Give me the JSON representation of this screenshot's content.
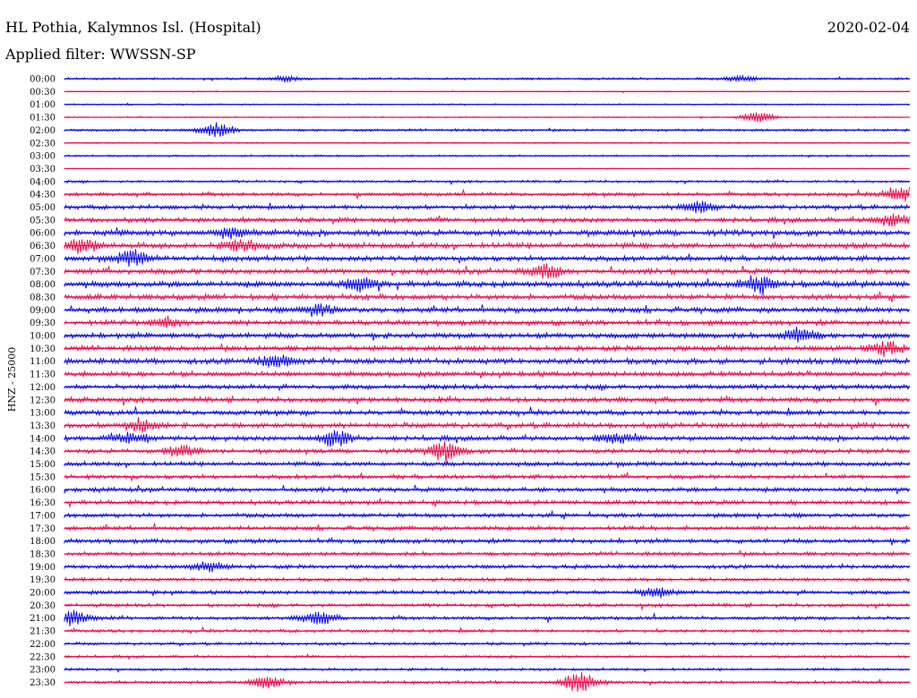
{
  "header": {
    "station": "HL Pothia, Kalymnos Isl. (Hospital)",
    "date": "2020-02-04",
    "filter": "Applied filter: WWSSN-SP"
  },
  "chart_data": {
    "type": "line",
    "title": "HL Pothia, Kalymnos Isl. (Hospital)",
    "subtitle": "Applied filter: WWSSN-SP",
    "ylabel": "HNZ - 25000",
    "xlabel": "",
    "grid": false,
    "colors": [
      "#0000ee",
      "#ee0044"
    ],
    "categories": [
      "00:00",
      "00:30",
      "01:00",
      "01:30",
      "02:00",
      "02:30",
      "03:00",
      "03:30",
      "04:00",
      "04:30",
      "05:00",
      "05:30",
      "06:00",
      "06:30",
      "07:00",
      "07:30",
      "08:00",
      "08:30",
      "09:00",
      "09:30",
      "10:00",
      "10:30",
      "11:00",
      "11:30",
      "12:00",
      "12:30",
      "13:00",
      "13:30",
      "14:00",
      "14:30",
      "15:00",
      "15:30",
      "16:00",
      "16:30",
      "17:00",
      "17:30",
      "18:00",
      "18:30",
      "19:00",
      "19:30",
      "20:00",
      "20:30",
      "21:00",
      "21:30",
      "22:00",
      "22:30",
      "23:00",
      "23:30"
    ],
    "noise_levels": [
      1.2,
      0.5,
      0.8,
      0.7,
      1.4,
      0.7,
      1.0,
      0.5,
      1.4,
      2.0,
      2.5,
      2.7,
      3.5,
      3.3,
      3.0,
      3.1,
      3.5,
      3.2,
      3.1,
      3.0,
      3.1,
      3.0,
      3.3,
      3.0,
      2.8,
      2.9,
      2.8,
      3.0,
      2.8,
      2.6,
      2.6,
      2.4,
      2.6,
      2.5,
      2.5,
      2.4,
      2.6,
      2.3,
      2.3,
      2.0,
      2.3,
      2.0,
      2.0,
      1.8,
      1.6,
      1.4,
      1.5,
      1.7
    ],
    "events": [
      {
        "row": 0,
        "t": 0.26,
        "amp": 3
      },
      {
        "row": 0,
        "t": 0.8,
        "amp": 3
      },
      {
        "row": 3,
        "t": 0.82,
        "amp": 6
      },
      {
        "row": 4,
        "t": 0.18,
        "amp": 8
      },
      {
        "row": 9,
        "t": 0.99,
        "amp": 8
      },
      {
        "row": 10,
        "t": 0.75,
        "amp": 6
      },
      {
        "row": 11,
        "t": 0.98,
        "amp": 6
      },
      {
        "row": 12,
        "t": 0.2,
        "amp": 5
      },
      {
        "row": 13,
        "t": 0.02,
        "amp": 7
      },
      {
        "row": 13,
        "t": 0.21,
        "amp": 6
      },
      {
        "row": 14,
        "t": 0.08,
        "amp": 8
      },
      {
        "row": 15,
        "t": 0.57,
        "amp": 7
      },
      {
        "row": 16,
        "t": 0.35,
        "amp": 7
      },
      {
        "row": 16,
        "t": 0.82,
        "amp": 8
      },
      {
        "row": 18,
        "t": 0.3,
        "amp": 6
      },
      {
        "row": 19,
        "t": 0.12,
        "amp": 5
      },
      {
        "row": 20,
        "t": 0.87,
        "amp": 8
      },
      {
        "row": 21,
        "t": 0.97,
        "amp": 7
      },
      {
        "row": 22,
        "t": 0.25,
        "amp": 6
      },
      {
        "row": 27,
        "t": 0.09,
        "amp": 6
      },
      {
        "row": 28,
        "t": 0.32,
        "amp": 9
      },
      {
        "row": 28,
        "t": 0.08,
        "amp": 6
      },
      {
        "row": 28,
        "t": 0.65,
        "amp": 6
      },
      {
        "row": 29,
        "t": 0.45,
        "amp": 10
      },
      {
        "row": 29,
        "t": 0.14,
        "amp": 6
      },
      {
        "row": 38,
        "t": 0.17,
        "amp": 5
      },
      {
        "row": 40,
        "t": 0.7,
        "amp": 5
      },
      {
        "row": 42,
        "t": 0.01,
        "amp": 8
      },
      {
        "row": 42,
        "t": 0.3,
        "amp": 7
      },
      {
        "row": 47,
        "t": 0.61,
        "amp": 11
      },
      {
        "row": 47,
        "t": 0.24,
        "amp": 6
      }
    ]
  }
}
